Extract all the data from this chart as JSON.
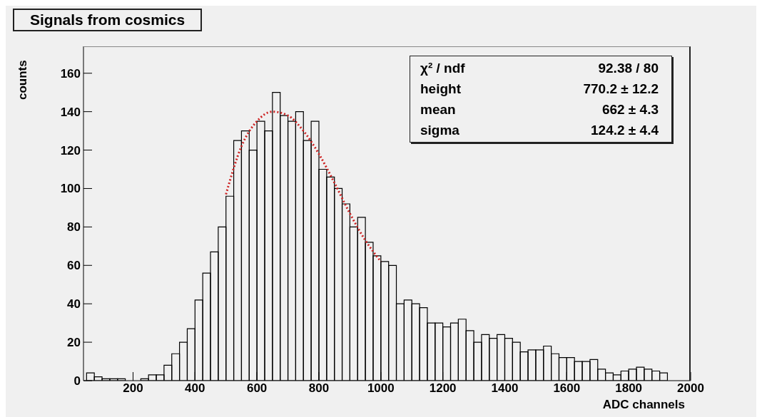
{
  "chart_data": {
    "type": "histogram",
    "title": "Signals from cosmics",
    "xlabel": "ADC channels",
    "ylabel": "counts",
    "bins": [
      50,
      75,
      100,
      125,
      150,
      175,
      200,
      225,
      250,
      275,
      300,
      325,
      350,
      375,
      400,
      425,
      450,
      475,
      500,
      525,
      550,
      575,
      600,
      625,
      650,
      675,
      700,
      725,
      750,
      775,
      800,
      825,
      850,
      875,
      900,
      925,
      950,
      975,
      1000,
      1025,
      1050,
      1075,
      1100,
      1125,
      1150,
      1175,
      1200,
      1225,
      1250,
      1275,
      1300,
      1325,
      1350,
      1375,
      1400,
      1425,
      1450,
      1475,
      1500,
      1525,
      1550,
      1575,
      1600,
      1625,
      1650,
      1675,
      1700,
      1725,
      1750,
      1775,
      1800,
      1825,
      1850,
      1875,
      1900,
      1925
    ],
    "values": [
      4,
      2,
      1,
      1,
      1,
      0,
      0,
      1,
      3,
      3,
      8,
      14,
      20,
      27,
      42,
      56,
      67,
      80,
      96,
      125,
      130,
      120,
      135,
      130,
      150,
      138,
      135,
      140,
      125,
      135,
      110,
      106,
      100,
      92,
      80,
      85,
      72,
      65,
      62,
      60,
      40,
      42,
      40,
      38,
      30,
      30,
      28,
      30,
      32,
      26,
      20,
      24,
      22,
      24,
      22,
      20,
      15,
      16,
      16,
      18,
      14,
      12,
      12,
      10,
      10,
      11,
      6,
      4,
      3,
      5,
      6,
      7,
      6,
      5,
      4
    ],
    "color": "#000000",
    "series": [
      {
        "type": "line",
        "color": "#cc2222",
        "line_style": "dotted",
        "x": [
          500,
          550,
          600,
          650,
          700,
          750,
          800,
          850,
          900,
          950,
          1000
        ],
        "values": [
          97,
          122,
          135,
          140,
          138,
          130,
          118,
          103,
          87,
          73,
          62
        ]
      }
    ],
    "xlim": [
      40,
      2000
    ],
    "xticks": [
      200,
      400,
      600,
      800,
      1000,
      1200,
      1400,
      1600,
      1800,
      2000
    ],
    "ylim": [
      0,
      174
    ],
    "yticks": [
      0,
      20,
      40,
      60,
      80,
      100,
      120,
      140,
      160
    ],
    "grid": false,
    "marker": "none",
    "annotations": [
      "χ² / ndf",
      "92.38 / 80",
      "height",
      "770.2 ± 12.2",
      "mean",
      "662 ± 4.3",
      "sigma",
      "124.2 ± 4.4"
    ]
  }
}
